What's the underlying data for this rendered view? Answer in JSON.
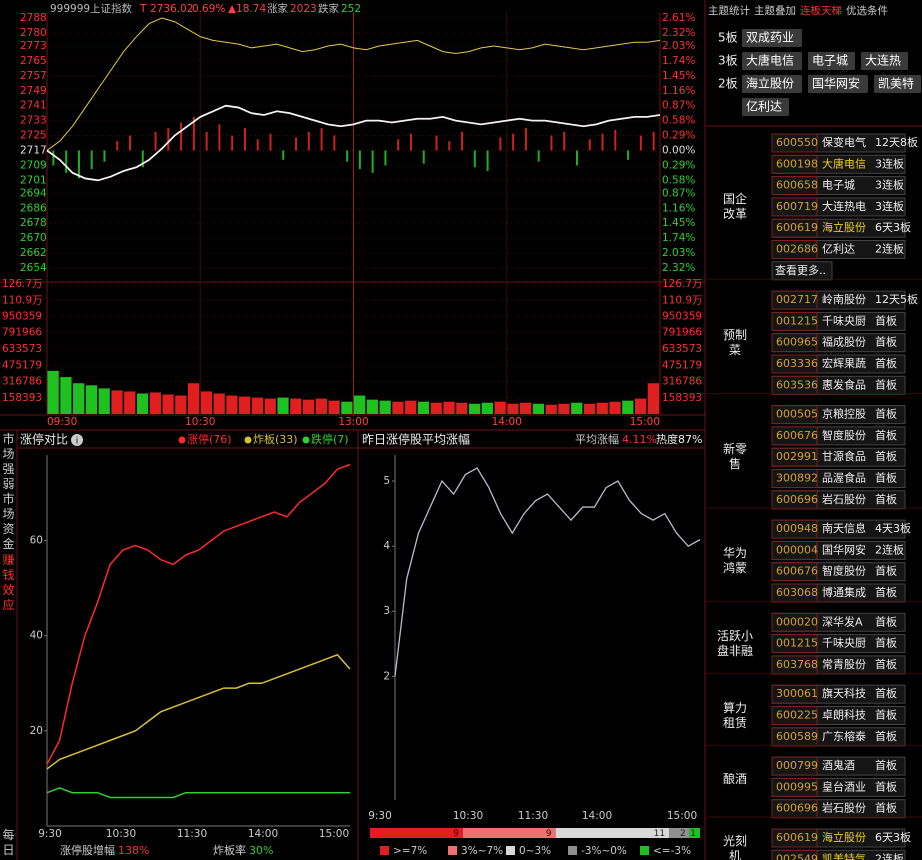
{
  "index_panel": {
    "code": "999999",
    "name": "上证指数",
    "flag": "T",
    "price": "2736.02",
    "pct": "0.69%",
    "change": "▲18.74",
    "up_label": "涨家",
    "up": "2023",
    "down_label": "跌家",
    "down": "252",
    "ylim": [
      2654,
      2788
    ],
    "price_ticks": [
      2788,
      2780,
      2773,
      2765,
      2757,
      2749,
      2741,
      2733,
      2725,
      2717,
      2709,
      2701,
      2694,
      2686,
      2678,
      2670,
      2662,
      2654
    ],
    "pct_ticks": [
      "2.61%",
      "2.32%",
      "2.03%",
      "1.74%",
      "1.45%",
      "1.16%",
      "0.87%",
      "0.58%",
      "0.29%",
      "0.00%",
      "0.29%",
      "0.58%",
      "0.87%",
      "1.16%",
      "1.45%",
      "1.74%",
      "2.03%",
      "2.32%"
    ],
    "price_line": [
      2717,
      2712,
      2705,
      2702,
      2701,
      2703,
      2706,
      2708,
      2712,
      2718,
      2725,
      2730,
      2735,
      2738,
      2741,
      2740,
      2737,
      2736,
      2738,
      2737,
      2735,
      2733,
      2731,
      2730,
      2731,
      2733,
      2733,
      2732,
      2733,
      2734,
      2734,
      2735,
      2733,
      2732,
      2731,
      2732,
      2733,
      2734,
      2733,
      2733,
      2732,
      2731,
      2730,
      2731,
      2733,
      2734,
      2735,
      2735,
      2736
    ],
    "avg_line": [
      2717,
      2722,
      2730,
      2740,
      2750,
      2760,
      2770,
      2778,
      2785,
      2788,
      2786,
      2782,
      2778,
      2776,
      2775,
      2774,
      2772,
      2773,
      2774,
      2772,
      2770,
      2771,
      2773,
      2774,
      2772,
      2771,
      2773,
      2774,
      2775,
      2776,
      2773,
      2770,
      2769,
      2770,
      2772,
      2773,
      2772,
      2771,
      2772,
      2774,
      2773,
      2772,
      2771,
      2772,
      2773,
      2774,
      2775,
      2775,
      2776
    ],
    "breadth": [
      -8,
      -12,
      -15,
      -10,
      -6,
      5,
      8,
      -9,
      10,
      12,
      15,
      18,
      10,
      14,
      8,
      12,
      6,
      9,
      -5,
      7,
      10,
      12,
      8,
      -6,
      -10,
      -12,
      -8,
      6,
      9,
      -7,
      8,
      5,
      10,
      -9,
      -11,
      7,
      9,
      12,
      -6,
      8,
      10,
      -8,
      6,
      9,
      11,
      -5,
      8,
      10
    ],
    "volume_ylim": [
      0,
      1267144
    ],
    "volume_ticks": [
      {
        "value": 1267144,
        "label": "126.7万"
      },
      {
        "value": 1108751,
        "label": "110.9万"
      },
      950359,
      791966,
      633573,
      475179,
      316786,
      158393
    ],
    "volume": [
      420000,
      360000,
      300000,
      280000,
      250000,
      230000,
      220000,
      200000,
      210000,
      190000,
      180000,
      300000,
      220000,
      200000,
      180000,
      170000,
      160000,
      150000,
      160000,
      150000,
      140000,
      150000,
      130000,
      120000,
      180000,
      140000,
      130000,
      120000,
      130000,
      120000,
      110000,
      120000,
      110000,
      100000,
      110000,
      120000,
      100000,
      110000,
      100000,
      90000,
      100000,
      110000,
      100000,
      110000,
      120000,
      130000,
      150000,
      300000
    ],
    "time_labels": [
      "09:30",
      "10:30",
      "13:00",
      "14:00",
      "15:00"
    ]
  },
  "theme_tabs": [
    "主题统计",
    "主题叠加",
    "连板天梯",
    "优选条件"
  ],
  "active_tab": 2,
  "ladder": [
    {
      "level": "5板",
      "stocks": [
        "双成药业"
      ]
    },
    {
      "level": "3板",
      "stocks": [
        "大唐电信",
        "电子城",
        "大连热"
      ]
    },
    {
      "level": "2板",
      "stocks": [
        "海立股份",
        "国华网安",
        "凯美特",
        "亿利达"
      ]
    }
  ],
  "themes": [
    {
      "name": "国企改革",
      "rows": [
        [
          "600550",
          "保变电气",
          "12天8板"
        ],
        [
          "600198",
          "大唐电信",
          "3连板"
        ],
        [
          "600658",
          "电子城",
          "3连板"
        ],
        [
          "600719",
          "大连热电",
          "3连板"
        ],
        [
          "600619",
          "海立股份",
          "6天3板"
        ],
        [
          "002686",
          "亿利达",
          "2连板"
        ]
      ],
      "highlight": [
        1,
        4
      ],
      "more": "查看更多.."
    },
    {
      "name": "预制菜",
      "rows": [
        [
          "002717",
          "岭南股份",
          "12天5板"
        ],
        [
          "001215",
          "千味央厨",
          "首板"
        ],
        [
          "600965",
          "福成股份",
          "首板"
        ],
        [
          "603336",
          "宏辉果蔬",
          "首板"
        ],
        [
          "603536",
          "惠发食品",
          "首板"
        ]
      ]
    },
    {
      "name": "新零售",
      "rows": [
        [
          "000505",
          "京粮控股",
          "首板"
        ],
        [
          "600676",
          "智度股份",
          "首板"
        ],
        [
          "002991",
          "甘源食品",
          "首板"
        ],
        [
          "300892",
          "品渥食品",
          "首板"
        ],
        [
          "600696",
          "岩石股份",
          "首板"
        ]
      ]
    },
    {
      "name": "华为鸿蒙",
      "rows": [
        [
          "000948",
          "南天信息",
          "4天3板"
        ],
        [
          "000004",
          "国华网安",
          "2连板"
        ],
        [
          "600676",
          "智度股份",
          "首板"
        ],
        [
          "603068",
          "博通集成",
          "首板"
        ]
      ]
    },
    {
      "name": "活跃小盘非融",
      "rows": [
        [
          "000020",
          "深华发A",
          "首板"
        ],
        [
          "001215",
          "千味央厨",
          "首板"
        ],
        [
          "603768",
          "常青股份",
          "首板"
        ]
      ]
    },
    {
      "name": "算力租赁",
      "rows": [
        [
          "300061",
          "旗天科技",
          "首板"
        ],
        [
          "600225",
          "卓朗科技",
          "首板"
        ],
        [
          "600589",
          "广东榕泰",
          "首板"
        ]
      ]
    },
    {
      "name": "酿酒",
      "rows": [
        [
          "000799",
          "酒鬼酒",
          "首板"
        ],
        [
          "000995",
          "皇台酒业",
          "首板"
        ],
        [
          "600696",
          "岩石股份",
          "首板"
        ]
      ]
    },
    {
      "name": "光刻机",
      "rows": [
        [
          "600619",
          "海立股份",
          "6天3板"
        ],
        [
          "002549",
          "凯美特气",
          "2连板"
        ]
      ],
      "highlight": [
        0,
        1
      ]
    }
  ],
  "sidebar": [
    "市场强弱",
    "市场资金",
    "赚钱效应",
    "每日"
  ],
  "sidebar_active": 2,
  "limit_chart": {
    "title": "涨停对比",
    "ylim": [
      0,
      78
    ],
    "yticks": [
      20,
      40,
      60
    ],
    "time_labels": [
      "9:30",
      "10:30",
      "11:30",
      "14:00",
      "15:00"
    ],
    "series": [
      {
        "name": "涨停(76)",
        "color": "#ff2a2a",
        "values": [
          13,
          18,
          30,
          40,
          47,
          55,
          58,
          59,
          58,
          56,
          55,
          57,
          58,
          60,
          62,
          63,
          64,
          65,
          66,
          65,
          68,
          70,
          72,
          75,
          76
        ]
      },
      {
        "name": "炸板(33)",
        "color": "#d8c030",
        "values": [
          12,
          14,
          15,
          16,
          17,
          18,
          19,
          20,
          22,
          24,
          25,
          26,
          27,
          28,
          29,
          29,
          30,
          30,
          31,
          32,
          33,
          34,
          35,
          36,
          33
        ]
      },
      {
        "name": "跌停(7)",
        "color": "#30d030",
        "values": [
          7,
          8,
          7,
          7,
          7,
          6,
          6,
          6,
          6,
          6,
          6,
          7,
          7,
          7,
          7,
          7,
          7,
          7,
          7,
          7,
          7,
          7,
          7,
          7,
          7
        ]
      }
    ],
    "footer": [
      {
        "label": "涨停股增幅",
        "value": "138%",
        "color": "#ff3030"
      },
      {
        "label": "炸板率",
        "value": "30%",
        "color": "#30d030"
      }
    ]
  },
  "avg_chart": {
    "title": "昨日涨停股平均涨幅",
    "avg_label": "平均涨幅",
    "avg": "4.11%",
    "heat": "热度87%",
    "ylim": [
      0.1,
      5.4
    ],
    "yticks": [
      2,
      3,
      4,
      5
    ],
    "color": "#b8bcc8",
    "time_labels": [
      "9:30",
      "10:30",
      "11:30",
      "14:00",
      "15:00"
    ],
    "values": [
      2.0,
      3.5,
      4.2,
      4.6,
      5.0,
      4.8,
      5.1,
      5.2,
      4.9,
      4.5,
      4.2,
      4.5,
      4.7,
      4.8,
      4.6,
      4.4,
      4.6,
      4.6,
      4.9,
      5.0,
      4.7,
      4.5,
      4.4,
      4.5,
      4.2,
      4.0,
      4.1
    ]
  },
  "distribution": {
    "counts": [
      9,
      9,
      11,
      2,
      1
    ],
    "labels": [
      ">=7%",
      "3%~7%",
      "0~3%",
      "-3%~0%",
      "<=-3%"
    ],
    "colors": [
      "#e02020",
      "#f07070",
      "#d8d8d8",
      "#909090",
      "#20c020"
    ]
  }
}
